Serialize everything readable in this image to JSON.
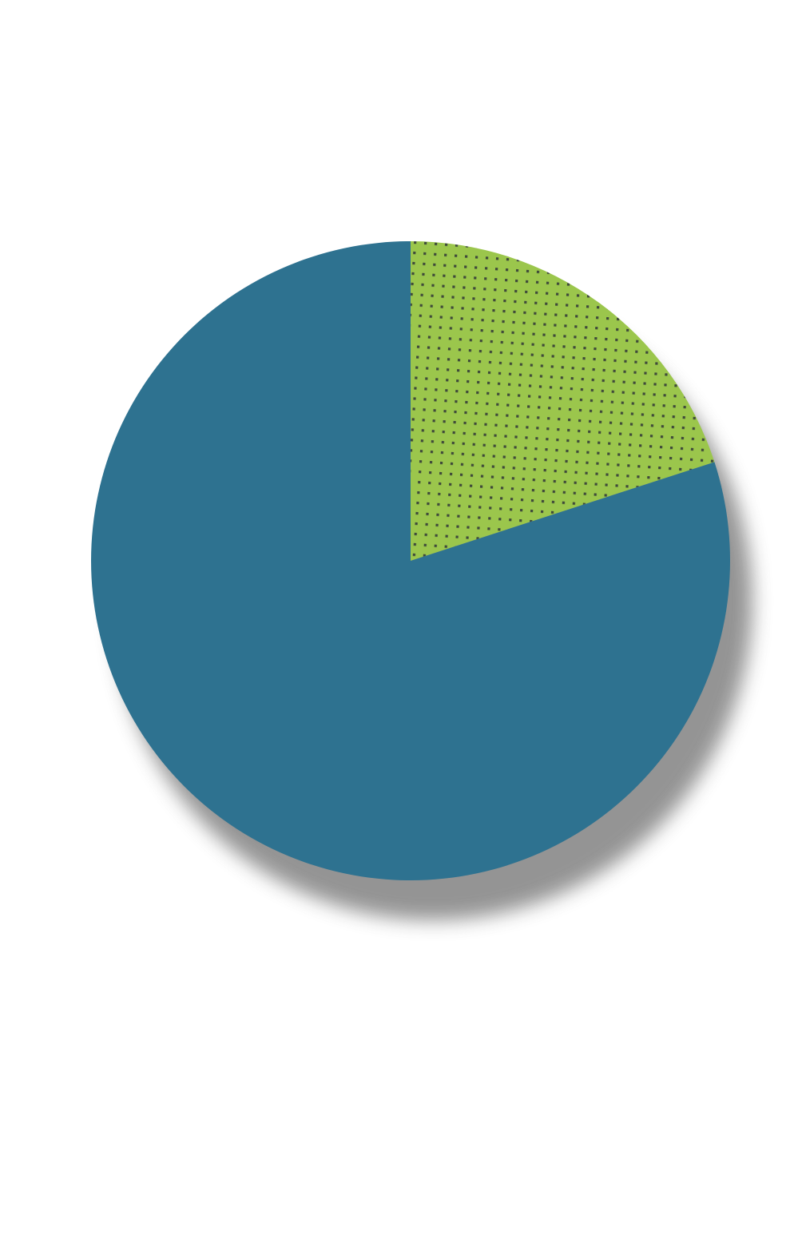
{
  "chart_data": {
    "type": "pie",
    "title": "",
    "start_angle_deg": 0,
    "direction": "clockwise",
    "slices": [
      {
        "value": 0.2,
        "color": "#9bc64c",
        "pattern": "dots"
      },
      {
        "value": 0.8,
        "color": "#2e7290",
        "pattern": "solid"
      }
    ],
    "shadow": true
  }
}
